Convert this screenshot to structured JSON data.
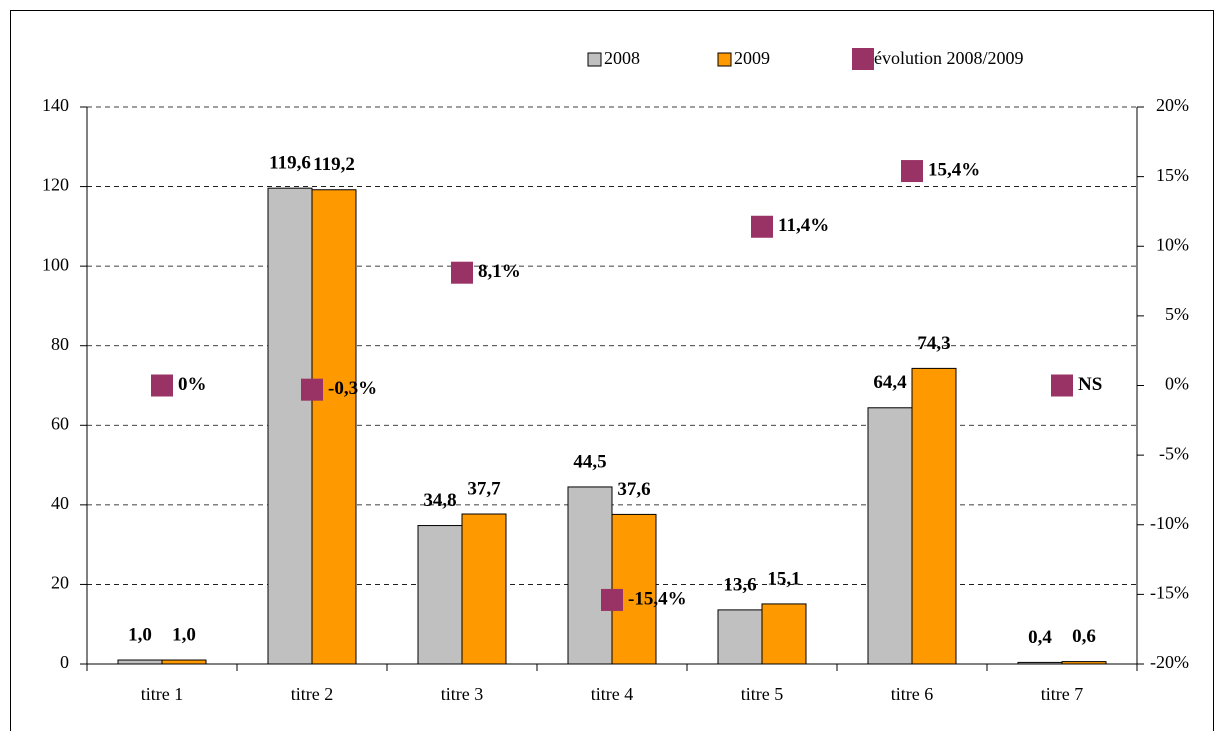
{
  "chart_data": {
    "type": "bar",
    "categories": [
      "titre 1",
      "titre 2",
      "titre 3",
      "titre 4",
      "titre 5",
      "titre 6",
      "titre 7"
    ],
    "series": [
      {
        "name": "2008",
        "color": "#c0c0c0",
        "values": [
          1.0,
          119.6,
          34.8,
          44.5,
          13.6,
          64.4,
          0.4
        ],
        "value_labels": [
          "1,0",
          "119,6",
          "34,8",
          "44,5",
          "13,6",
          "64,4",
          "0,4"
        ]
      },
      {
        "name": "2009",
        "color": "#ff9900",
        "values": [
          1.0,
          119.2,
          37.7,
          37.6,
          15.1,
          74.3,
          0.6
        ],
        "value_labels": [
          "1,0",
          "119,2",
          "37,7",
          "37,6",
          "15,1",
          "74,3",
          "0,6"
        ]
      },
      {
        "name": "évolution 2008/2009",
        "color": "#993366",
        "axis": "y2",
        "type": "scatter",
        "values": [
          0,
          -0.3,
          8.1,
          -15.4,
          11.4,
          15.4,
          0
        ],
        "value_labels": [
          "0%",
          "-0,3%",
          "8,1%",
          "-15,4%",
          "11,4%",
          "15,4%",
          "NS"
        ]
      }
    ],
    "ylim": [
      0,
      140
    ],
    "yticks": [
      0,
      20,
      40,
      60,
      80,
      100,
      120,
      140
    ],
    "y2lim": [
      -20,
      20
    ],
    "y2ticks": [
      {
        "value": -20,
        "label": "-20%"
      },
      {
        "value": -15,
        "label": "-15%"
      },
      {
        "value": -10,
        "label": "-10%"
      },
      {
        "value": -5,
        "label": "-5%"
      },
      {
        "value": 0,
        "label": "0%"
      },
      {
        "value": 5,
        "label": "5%"
      },
      {
        "value": 10,
        "label": "10%"
      },
      {
        "value": 15,
        "label": "15%"
      },
      {
        "value": 20,
        "label": "20%"
      }
    ],
    "grid": true,
    "legend": "top"
  }
}
